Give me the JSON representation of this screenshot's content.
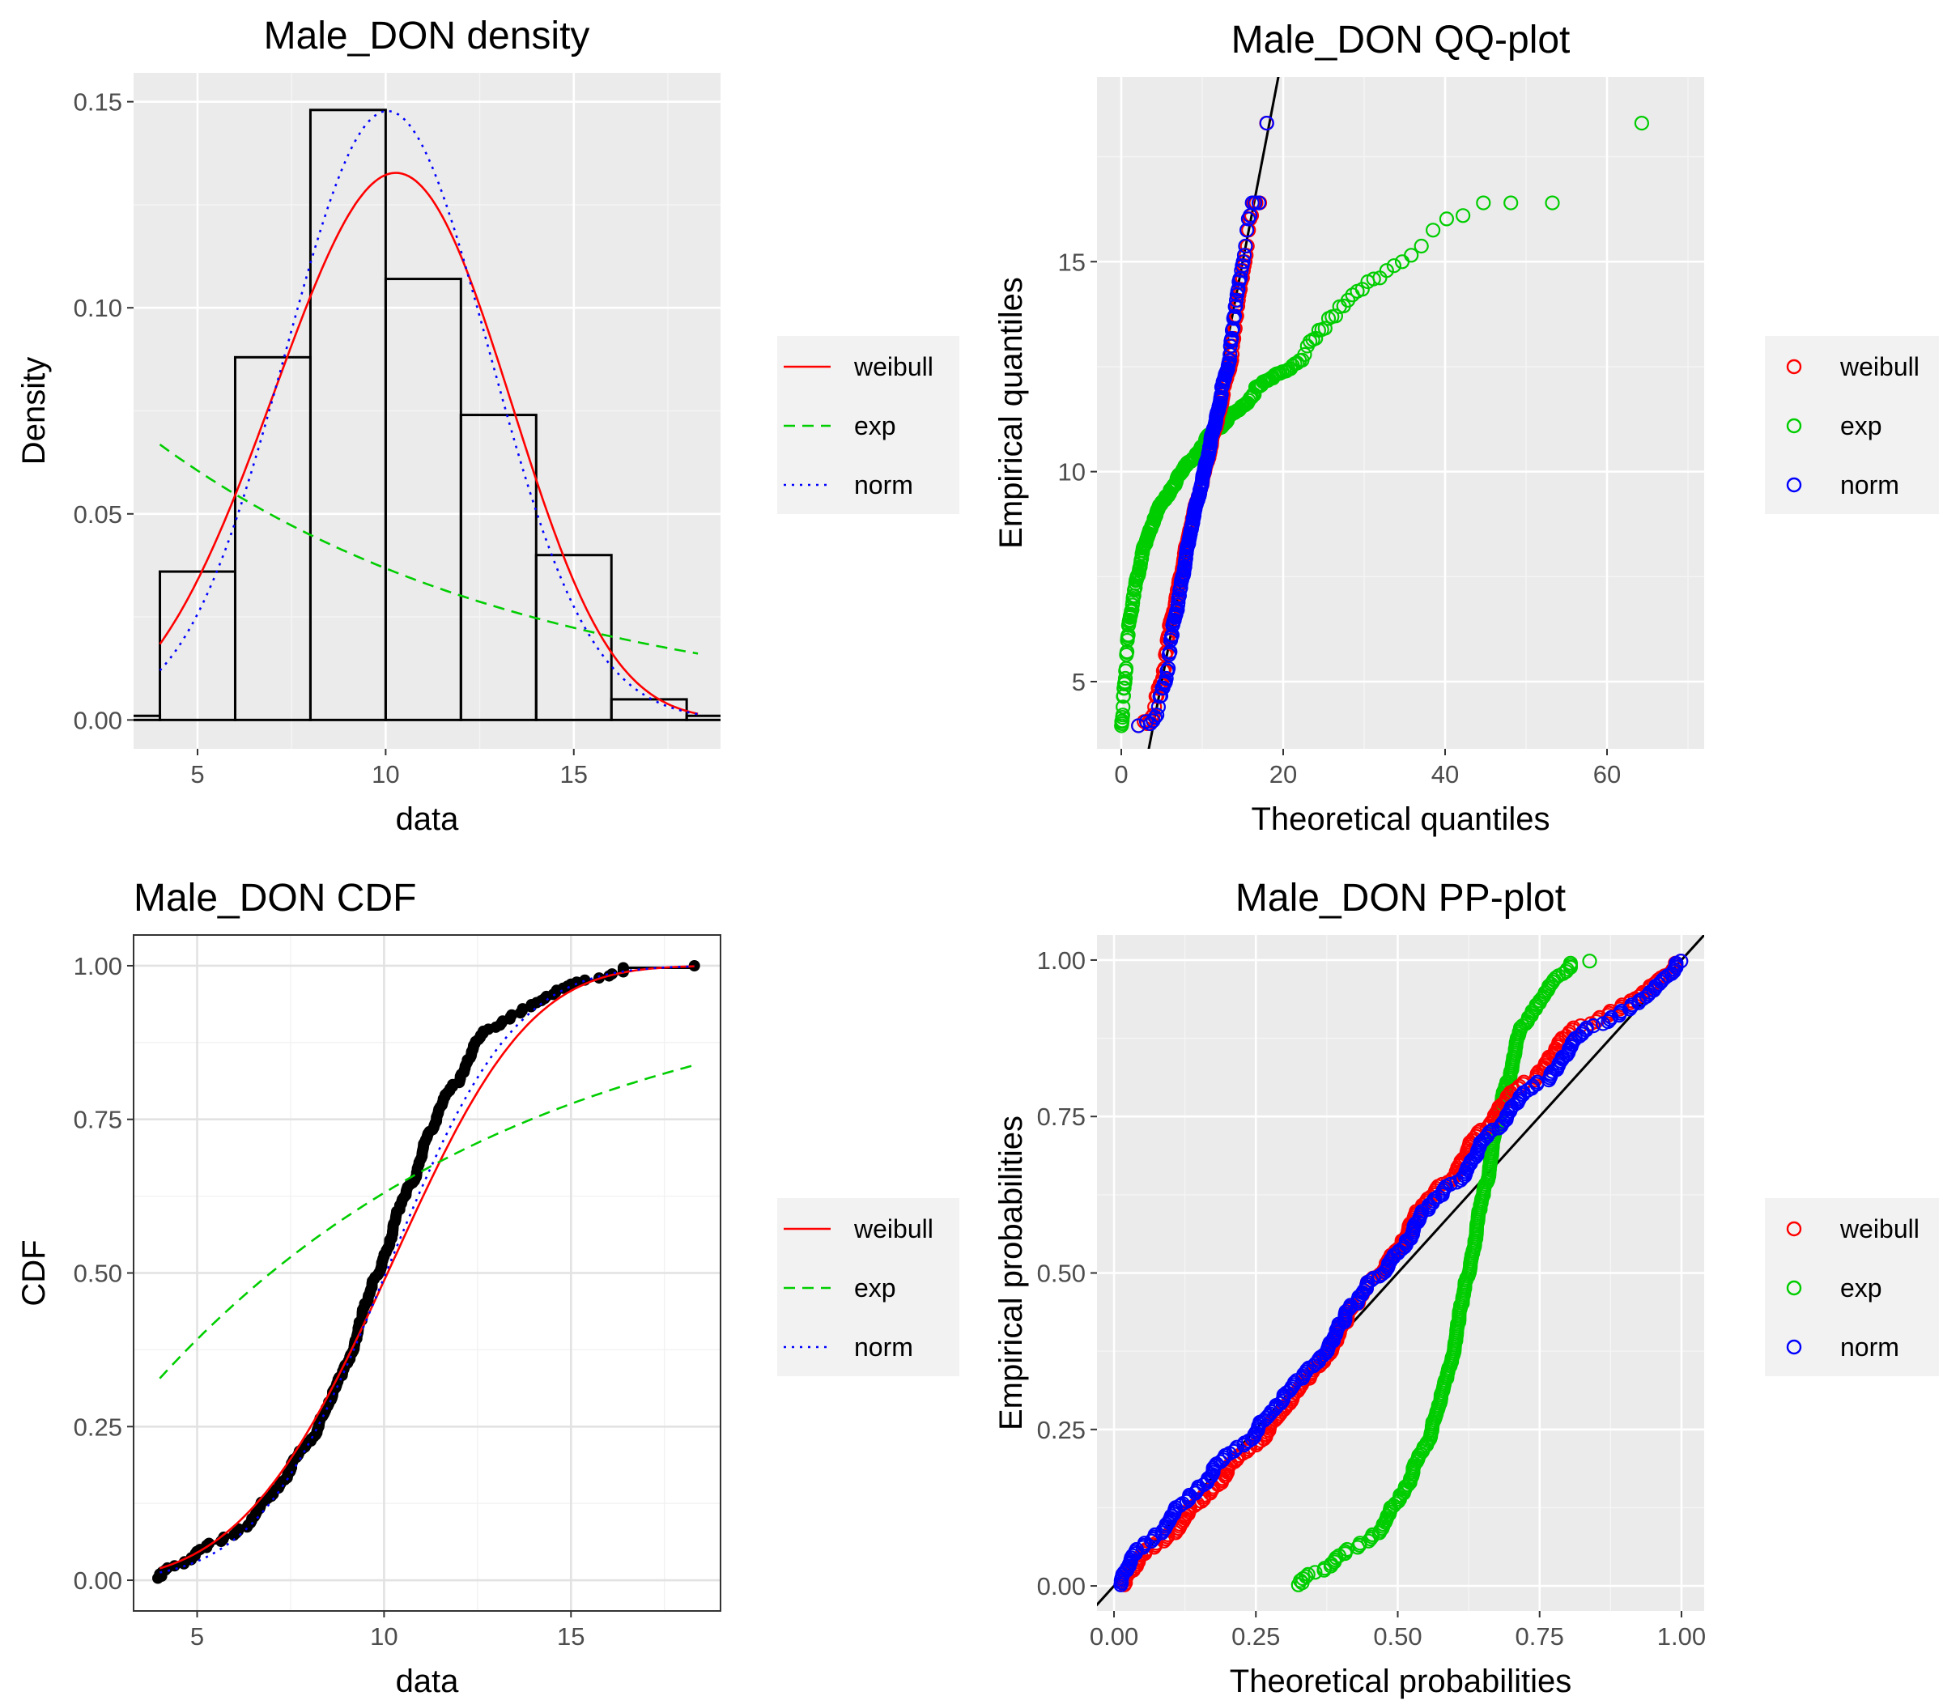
{
  "colors": {
    "weibull": "#ff0000",
    "exp": "#00cd00",
    "norm": "#0000ff",
    "black": "#000000"
  },
  "chart_data": [
    {
      "type": "bar",
      "title": "Male_DON density",
      "xlabel": "data",
      "ylabel": "Density",
      "xlim": [
        3.3,
        18.9
      ],
      "ylim": [
        -0.007,
        0.157
      ],
      "xticks": [
        5,
        10,
        15
      ],
      "yticks": [
        0.0,
        0.05,
        0.1,
        0.15
      ],
      "ytick_labels": [
        "0.00",
        "0.05",
        "0.10",
        "0.15"
      ],
      "grid": true,
      "legend_position": "right",
      "histogram": {
        "bin_edges": [
          2,
          4,
          6,
          8,
          10,
          12,
          14,
          16,
          18,
          20
        ],
        "values": [
          0.001,
          0.036,
          0.088,
          0.148,
          0.107,
          0.074,
          0.04,
          0.005,
          0.001
        ]
      },
      "series": [
        {
          "name": "weibull",
          "style": "solid",
          "dist": "weibull",
          "shape": 3.86,
          "scale": 11.1,
          "x_range": [
            4.0,
            18.3
          ]
        },
        {
          "name": "exp",
          "style": "dashed",
          "dist": "exp",
          "rate": 0.0995,
          "x_range": [
            4.0,
            18.3
          ]
        },
        {
          "name": "norm",
          "style": "dotted",
          "dist": "norm",
          "mean": 10.05,
          "sd": 2.7,
          "x_range": [
            4.0,
            18.3
          ]
        }
      ]
    },
    {
      "type": "scatter",
      "title": "Male_DON QQ-plot",
      "xlabel": "Theoretical quantiles",
      "ylabel": "Empirical quantiles",
      "xlim": [
        -3,
        72
      ],
      "ylim": [
        3.4,
        19.4
      ],
      "xticks": [
        0,
        20,
        40,
        60
      ],
      "yticks": [
        5,
        10,
        15
      ],
      "grid": true,
      "legend_position": "right",
      "reference_line": "y = x",
      "series": [
        {
          "name": "weibull",
          "marker": "open-circle"
        },
        {
          "name": "exp",
          "marker": "open-circle"
        },
        {
          "name": "norm",
          "marker": "open-circle"
        }
      ]
    },
    {
      "type": "line",
      "title": "Male_DON CDF",
      "xlabel": "data",
      "ylabel": "CDF",
      "xlim": [
        3.3,
        19.0
      ],
      "ylim": [
        -0.05,
        1.05
      ],
      "xticks": [
        5,
        10,
        15
      ],
      "yticks": [
        0,
        0.25,
        0.5,
        0.75,
        1
      ],
      "ytick_labels": [
        "0.00",
        "0.25",
        "0.50",
        "0.75",
        "1.00"
      ],
      "grid": true,
      "legend_position": "right",
      "empirical": {
        "marker": "filled-circle",
        "x_range": [
          3.9,
          18.3
        ]
      },
      "series": [
        {
          "name": "weibull",
          "style": "solid",
          "dist": "weibull",
          "shape": 3.86,
          "scale": 11.1,
          "x_range": [
            4.0,
            18.3
          ]
        },
        {
          "name": "exp",
          "style": "dashed",
          "dist": "exp",
          "rate": 0.0995,
          "x_range": [
            4.0,
            18.3
          ]
        },
        {
          "name": "norm",
          "style": "dotted",
          "dist": "norm",
          "mean": 10.05,
          "sd": 2.7,
          "x_range": [
            4.0,
            18.3
          ]
        }
      ]
    },
    {
      "type": "scatter",
      "title": "Male_DON PP-plot",
      "xlabel": "Theoretical probabilities",
      "ylabel": "Empirical probabilities",
      "xlim": [
        -0.03,
        1.04
      ],
      "ylim": [
        -0.04,
        1.04
      ],
      "xticks": [
        0,
        0.25,
        0.5,
        0.75,
        1
      ],
      "yticks": [
        0,
        0.25,
        0.5,
        0.75,
        1
      ],
      "xtick_labels": [
        "0.00",
        "0.25",
        "0.50",
        "0.75",
        "1.00"
      ],
      "ytick_labels": [
        "0.00",
        "0.25",
        "0.50",
        "0.75",
        "1.00"
      ],
      "grid": true,
      "legend_position": "right",
      "reference_line": "y = x",
      "series": [
        {
          "name": "weibull",
          "marker": "open-circle"
        },
        {
          "name": "exp",
          "marker": "open-circle"
        },
        {
          "name": "norm",
          "marker": "open-circle"
        }
      ]
    }
  ]
}
